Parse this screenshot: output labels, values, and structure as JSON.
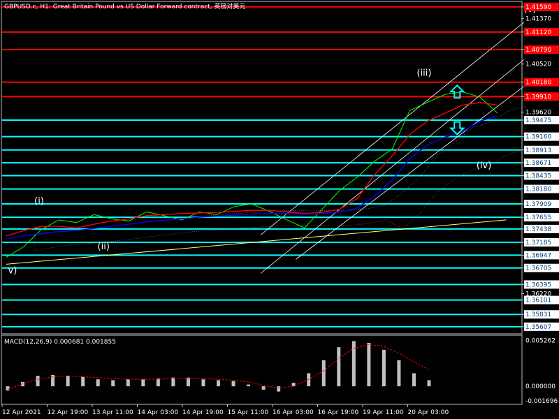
{
  "header": {
    "symbol_title": "GBPUSD.c, H1:  Great Britain Pound vs US Dollar Forward contract, 英镑对美元"
  },
  "macd_label": "MACD(12,26,9) 0.000681 0.001855",
  "colors": {
    "background": "#000000",
    "price": "#00ff00",
    "fast_ma": "#ff0000",
    "slow_ma": "#0000ff",
    "level_red": "#ff0000",
    "level_cyan": "#00ffff",
    "channel": "#ffffff",
    "trendline": "#ffff80",
    "wave_label": "#ffffff",
    "macd_hist": "#c0c0c0",
    "macd_signal": "#ff0000",
    "arrow": "#00ffff"
  },
  "chart_data": [
    {
      "type": "line",
      "pane": "price",
      "ylim": [
        1.3548,
        1.4168
      ],
      "y_ticks": [
        1.4159,
        1.4137,
        1.4112,
        1.4079,
        1.4052,
        1.4018,
        1.3991,
        1.3962,
        1.3947,
        1.3916,
        1.3891,
        1.3867,
        1.3843,
        1.3818,
        1.379,
        1.3765,
        1.3743,
        1.3718,
        1.3694,
        1.367,
        1.3639,
        1.3622,
        1.361,
        1.3583,
        1.356
      ],
      "y_tick_labels": [
        "1.41590",
        "1.41370",
        "1.41120",
        "1.40790",
        "1.40520",
        "1.40180",
        "1.39910",
        "1.39620",
        "1.39475",
        "1.39160",
        "1.38913",
        "1.38671",
        "1.38435",
        "1.38180",
        "1.37909",
        "1.37655",
        "1.37438",
        "1.37185",
        "1.36947",
        "1.36705",
        "1.36395",
        "1.36220",
        "1.36101",
        "1.35831",
        "1.35607"
      ],
      "x_ticks": [
        "12 Apr 2021",
        "12 Apr 19:00",
        "13 Apr 11:00",
        "14 Apr 03:00",
        "14 Apr 19:00",
        "15 Apr 11:00",
        "16 Apr 03:00",
        "16 Apr 19:00",
        "19 Apr 11:00",
        "20 Apr 03:00"
      ],
      "highlighted_levels": {
        "red": [
          1.4159,
          1.4112,
          1.4079,
          1.4018,
          1.3991
        ],
        "cyan": [
          1.3947,
          1.3916,
          1.3891,
          1.3867,
          1.3843,
          1.3818,
          1.379,
          1.3765,
          1.3743,
          1.3718,
          1.3694,
          1.367,
          1.3639,
          1.361,
          1.3583,
          1.356
        ]
      },
      "series": [
        {
          "values": [
            1.369,
            1.371,
            1.3742,
            1.376,
            1.3755,
            1.377,
            1.3762,
            1.3758,
            1.3775,
            1.3768,
            1.376,
            1.3775,
            1.377,
            1.3785,
            1.379,
            1.3776,
            1.376,
            1.3745,
            1.378,
            1.3815,
            1.384,
            1.387,
            1.3893,
            1.3965,
            1.398,
            1.3995,
            1.4,
            1.399,
            1.396
          ]
        },
        {
          "values": [
            1.373,
            1.374,
            1.3748,
            1.3748,
            1.3745,
            1.3752,
            1.3758,
            1.3762,
            1.3768,
            1.377,
            1.3772,
            1.3773,
            1.3774,
            1.3776,
            1.3778,
            1.3778,
            1.3775,
            1.3772,
            1.3774,
            1.378,
            1.38,
            1.3845,
            1.388,
            1.392,
            1.3945,
            1.396,
            1.3975,
            1.398,
            1.3975
          ]
        },
        {
          "values": [
            1.3725,
            1.373,
            1.3735,
            1.3738,
            1.374,
            1.3744,
            1.3748,
            1.3752,
            1.3756,
            1.376,
            1.3762,
            1.3765,
            1.3767,
            1.3769,
            1.3771,
            1.3772,
            1.3772,
            1.3771,
            1.3772,
            1.3775,
            1.3782,
            1.3805,
            1.3835,
            1.3875,
            1.39,
            1.3915,
            1.3925,
            1.3945,
            1.3955
          ]
        }
      ],
      "annotations": [
        {
          "text": "(i)",
          "x_index": 1.6,
          "y": 1.379
        },
        {
          "text": "(ii)",
          "x_index": 5.2,
          "y": 1.3705
        },
        {
          "text": "(iii)",
          "x_index": 23.4,
          "y": 1.403
        },
        {
          "text": "(iv)",
          "x_index": 26.8,
          "y": 1.3857
        },
        {
          "text": "v)",
          "x_index": 0.1,
          "y": 1.366
        },
        {
          "text": "(v)",
          "x_index": 29.5,
          "y": 1.415
        }
      ]
    },
    {
      "type": "bar",
      "pane": "macd",
      "ylim": [
        -0.002,
        0.0058
      ],
      "y_ticks": [
        0.005262,
        0.0,
        -0.001696
      ],
      "y_tick_labels": [
        "0.005262",
        "0.000000",
        "-0.001696"
      ],
      "values": [
        -0.0005,
        0.0005,
        0.0012,
        0.0013,
        0.0012,
        0.0011,
        0.0008,
        0.0007,
        0.0008,
        0.0008,
        0.0009,
        0.001,
        0.001,
        0.0008,
        0.0007,
        0.0006,
        0.0002,
        -0.0004,
        -0.0006,
        0.0004,
        0.0015,
        0.003,
        0.0045,
        0.0052,
        0.005,
        0.0042,
        0.003,
        0.0015,
        0.0007
      ],
      "signal": [
        -0.0004,
        0.0003,
        0.0008,
        0.0011,
        0.0012,
        0.0011,
        0.001,
        0.0009,
        0.0008,
        0.0008,
        0.0008,
        0.0009,
        0.0009,
        0.0009,
        0.0008,
        0.0007,
        0.0005,
        0.0001,
        -0.0002,
        0.0,
        0.0008,
        0.0018,
        0.0032,
        0.0044,
        0.0048,
        0.0046,
        0.0038,
        0.0028,
        0.0019
      ]
    }
  ]
}
